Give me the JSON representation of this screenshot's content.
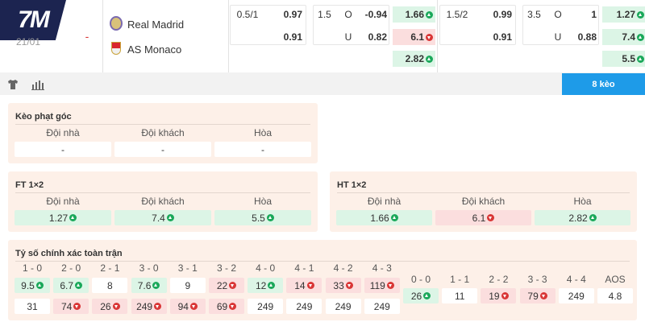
{
  "header": {
    "logo": "7M",
    "date": "21/01",
    "score": "-",
    "home_team": "Real Madrid",
    "away_team": "AS Monaco"
  },
  "odds": [
    {
      "handicap": {
        "line": "0.5/1",
        "home": "0.97",
        "away": "0.91"
      },
      "over_under": {
        "line": "1.5",
        "over_label": "O",
        "over": "-0.94",
        "under_label": "U",
        "under": "0.82"
      },
      "one_x_two": [
        {
          "text": "1.66",
          "trend": "up"
        },
        {
          "text": "6.1",
          "trend": "down"
        },
        {
          "text": "2.82",
          "trend": "up"
        }
      ]
    },
    {
      "handicap": {
        "line": "1.5/2",
        "home": "0.99",
        "away": "0.91"
      },
      "over_under": {
        "line": "3.5",
        "over_label": "O",
        "over": "1",
        "under_label": "U",
        "under": "0.88"
      },
      "one_x_two": [
        {
          "text": "1.27",
          "trend": "up"
        },
        {
          "text": "7.4",
          "trend": "up"
        },
        {
          "text": "5.5",
          "trend": "up"
        }
      ]
    }
  ],
  "tabs": {
    "active": "8 kèo"
  },
  "corner": {
    "title": "Kèo phạt góc",
    "headers": [
      "Đội nhà",
      "Đội khách",
      "Hòa"
    ],
    "values": [
      {
        "text": "-",
        "trend": null
      },
      {
        "text": "-",
        "trend": null
      },
      {
        "text": "-",
        "trend": null
      }
    ]
  },
  "ft_1x2": {
    "title": "FT 1×2",
    "headers": [
      "Đội nhà",
      "Đội khách",
      "Hòa"
    ],
    "values": [
      {
        "text": "1.27",
        "trend": "up"
      },
      {
        "text": "7.4",
        "trend": "up"
      },
      {
        "text": "5.5",
        "trend": "up"
      }
    ]
  },
  "ht_1x2": {
    "title": "HT 1×2",
    "headers": [
      "Đội nhà",
      "Đội khách",
      "Hòa"
    ],
    "values": [
      {
        "text": "1.66",
        "trend": "up"
      },
      {
        "text": "6.1",
        "trend": "down"
      },
      {
        "text": "2.82",
        "trend": "up"
      }
    ]
  },
  "correct_score": {
    "title": "Tỷ số chính xác toàn trận",
    "home_columns": [
      {
        "label": "1 - 0",
        "home": {
          "text": "9.5",
          "trend": "up"
        },
        "away": {
          "text": "31",
          "trend": null
        }
      },
      {
        "label": "2 - 0",
        "home": {
          "text": "6.7",
          "trend": "up"
        },
        "away": {
          "text": "74",
          "trend": "down"
        }
      },
      {
        "label": "2 - 1",
        "home": {
          "text": "8",
          "trend": null
        },
        "away": {
          "text": "26",
          "trend": "down"
        }
      },
      {
        "label": "3 - 0",
        "home": {
          "text": "7.6",
          "trend": "up"
        },
        "away": {
          "text": "249",
          "trend": "down"
        }
      },
      {
        "label": "3 - 1",
        "home": {
          "text": "9",
          "trend": null
        },
        "away": {
          "text": "94",
          "trend": "down"
        }
      },
      {
        "label": "3 - 2",
        "home": {
          "text": "22",
          "trend": "down"
        },
        "away": {
          "text": "69",
          "trend": "down"
        }
      },
      {
        "label": "4 - 0",
        "home": {
          "text": "12",
          "trend": "up"
        },
        "away": {
          "text": "249",
          "trend": null
        }
      },
      {
        "label": "4 - 1",
        "home": {
          "text": "14",
          "trend": "down"
        },
        "away": {
          "text": "249",
          "trend": null
        }
      },
      {
        "label": "4 - 2",
        "home": {
          "text": "33",
          "trend": "down"
        },
        "away": {
          "text": "249",
          "trend": null
        }
      },
      {
        "label": "4 - 3",
        "home": {
          "text": "119",
          "trend": "down"
        },
        "away": {
          "text": "249",
          "trend": null
        }
      }
    ],
    "draw_columns": [
      {
        "label": "0 - 0",
        "value": {
          "text": "26",
          "trend": "up"
        }
      },
      {
        "label": "1 - 1",
        "value": {
          "text": "11",
          "trend": null
        }
      },
      {
        "label": "2 - 2",
        "value": {
          "text": "19",
          "trend": "down"
        }
      },
      {
        "label": "3 - 3",
        "value": {
          "text": "79",
          "trend": "down"
        }
      },
      {
        "label": "4 - 4",
        "value": {
          "text": "249",
          "trend": null
        }
      },
      {
        "label": "AOS",
        "value": {
          "text": "4.8",
          "trend": null
        }
      }
    ]
  }
}
